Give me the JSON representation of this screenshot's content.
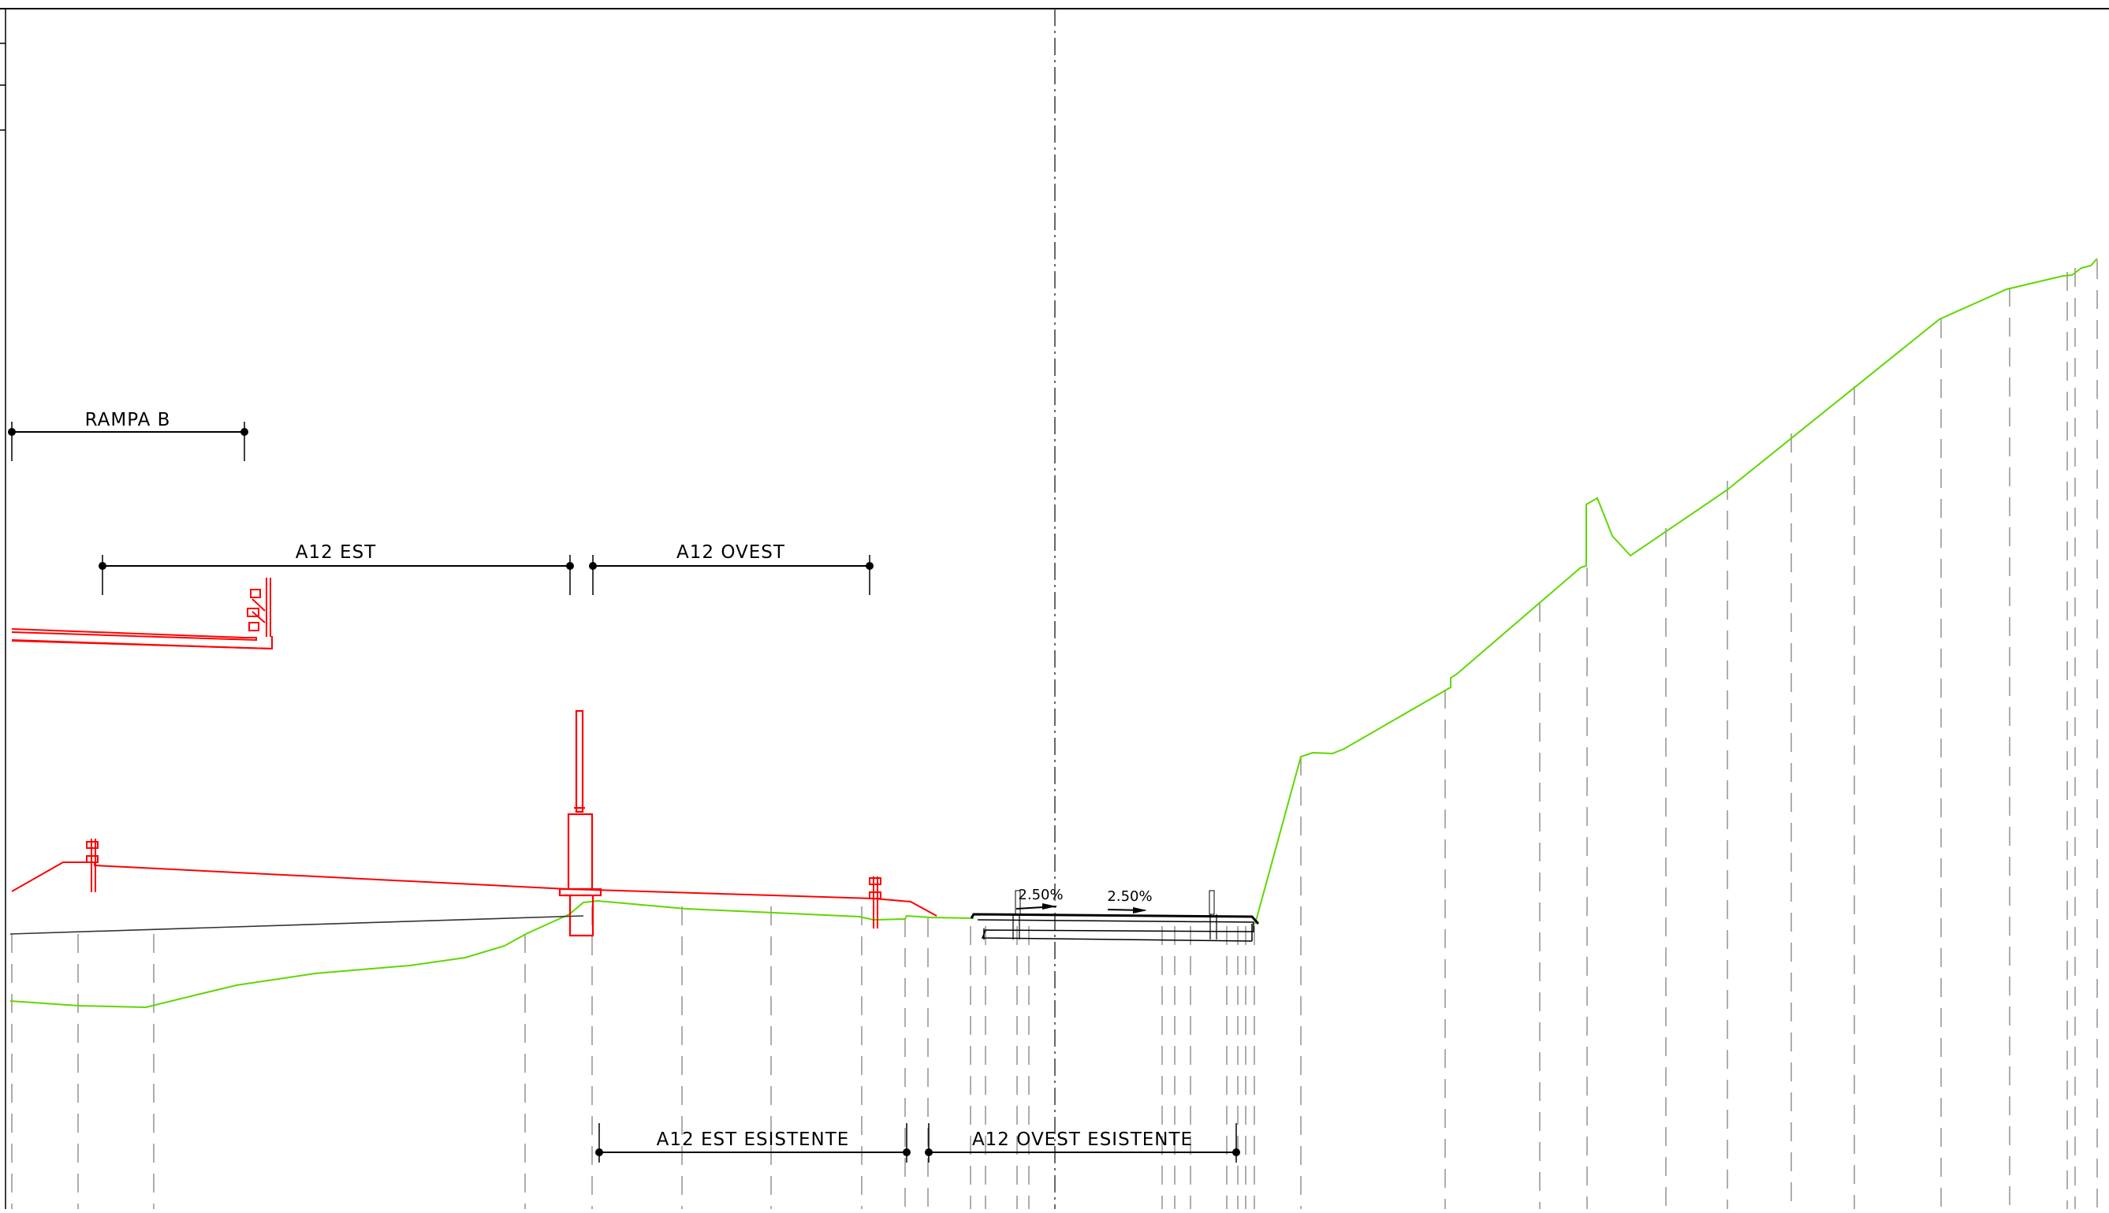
{
  "drawing": {
    "colors": {
      "background": "#ffffff",
      "project": "#ff0000",
      "terrain": "#5fd700",
      "existing": "#000000",
      "guides": "#8a8a8a"
    },
    "dimensions": {
      "rampa_b": "RAMPA B",
      "a12_est": "A12 EST",
      "a12_ovest": "A12 OVEST",
      "a12_est_esistente": "A12 EST ESISTENTE",
      "a12_ovest_esistente": "A12 OVEST ESISTENTE"
    },
    "slopes": {
      "left": "2.50%",
      "right": "2.50%"
    }
  }
}
